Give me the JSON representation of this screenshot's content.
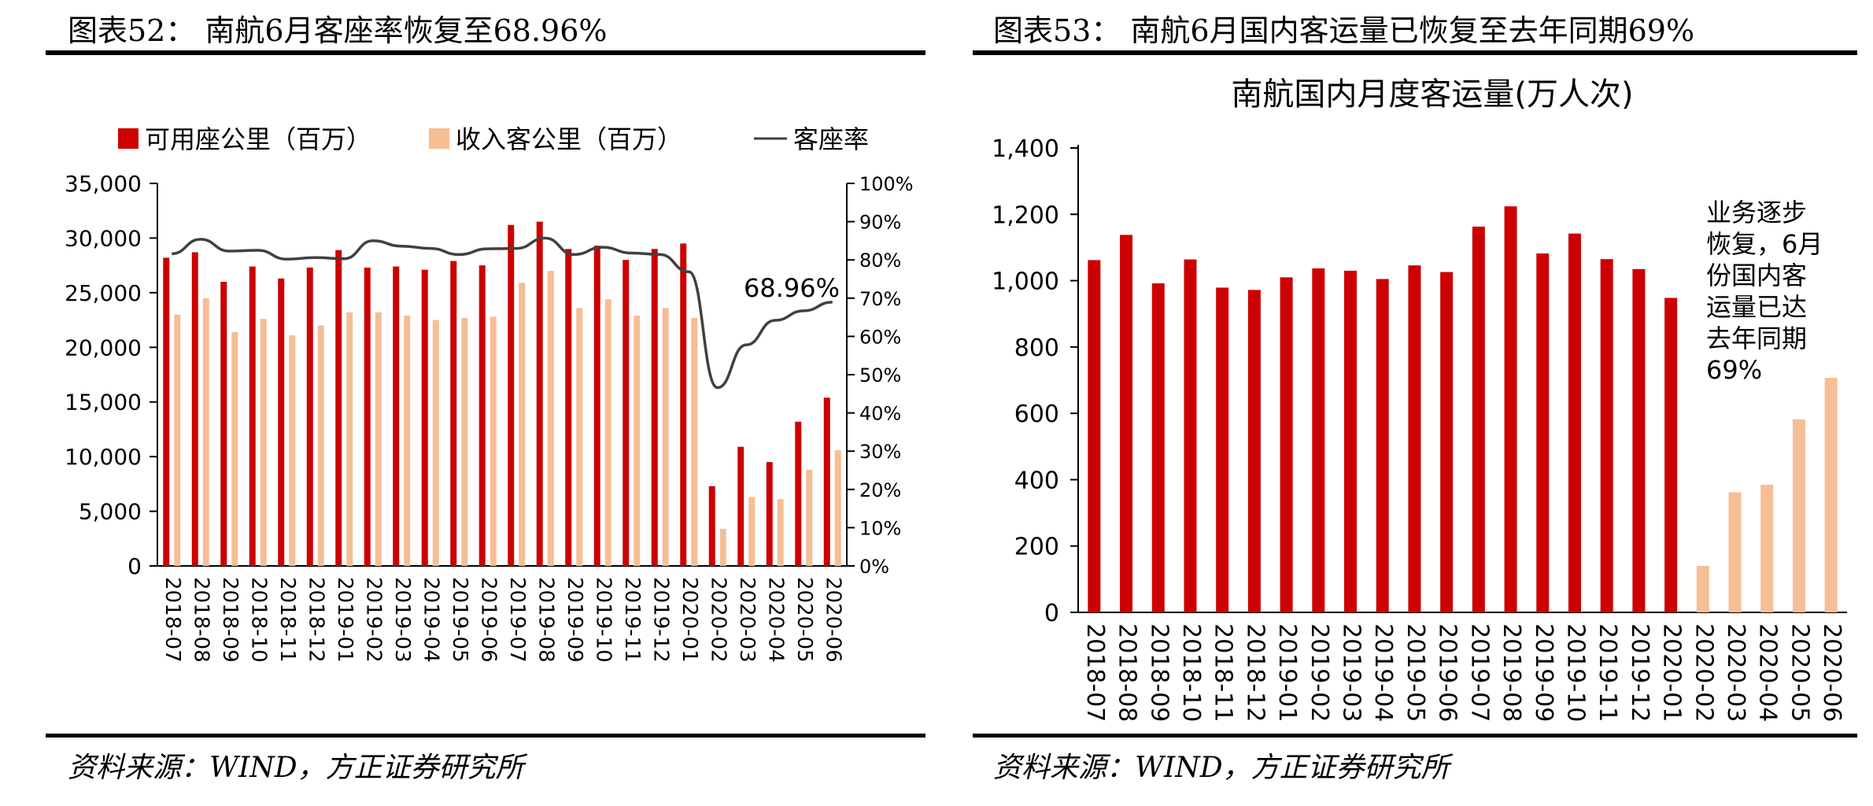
{
  "left_panel": {
    "figure_title": "图表52：  南航6月客座率恢复至68.96%",
    "source": "资料来源：WIND，方正证券研究所"
  },
  "right_panel": {
    "figure_title": "图表53：  南航6月国内客运量已恢复至去年同期69%",
    "source": "资料来源：WIND，方正证券研究所"
  },
  "colors": {
    "red": "#CC0000",
    "peach": "#F5BE95",
    "line": "#404040"
  },
  "chart_data": [
    {
      "type": "bar",
      "title": "",
      "categories": [
        "2018-07",
        "2018-08",
        "2018-09",
        "2018-10",
        "2018-11",
        "2018-12",
        "2019-01",
        "2019-02",
        "2019-03",
        "2019-04",
        "2019-05",
        "2019-06",
        "2019-07",
        "2019-08",
        "2019-09",
        "2019-10",
        "2019-11",
        "2019-12",
        "2020-01",
        "2020-02",
        "2020-03",
        "2020-04",
        "2020-05",
        "2020-06"
      ],
      "series": [
        {
          "name": "可用座公里（百万）",
          "kind": "bar",
          "axis": "left",
          "values": [
            28200,
            28700,
            26000,
            27400,
            26300,
            27300,
            28900,
            27300,
            27400,
            27100,
            27900,
            27500,
            31200,
            31500,
            29000,
            29300,
            28000,
            29000,
            29500,
            7300,
            10900,
            9500,
            13200,
            15400
          ]
        },
        {
          "name": "收入客公里（百万）",
          "kind": "bar",
          "axis": "left",
          "values": [
            23000,
            24500,
            21400,
            22600,
            21100,
            22000,
            23200,
            23200,
            22900,
            22500,
            22700,
            22800,
            25900,
            27000,
            23600,
            24400,
            22900,
            23600,
            22700,
            3400,
            6300,
            6100,
            8800,
            10600
          ]
        },
        {
          "name": "客座率",
          "kind": "line",
          "axis": "right",
          "values": [
            81.6,
            85.4,
            82.3,
            82.5,
            80.2,
            80.6,
            80.3,
            85.0,
            83.6,
            83.0,
            81.4,
            82.9,
            83.0,
            85.7,
            81.4,
            83.3,
            81.8,
            81.4,
            76.9,
            46.6,
            57.8,
            64.2,
            66.7,
            68.96
          ]
        }
      ],
      "ylim": [
        0,
        35000
      ],
      "yticks": [
        "0",
        "5,000",
        "10,000",
        "15,000",
        "20,000",
        "25,000",
        "30,000",
        "35,000"
      ],
      "y2lim": [
        0,
        100
      ],
      "y2ticks": [
        "0%",
        "10%",
        "20%",
        "30%",
        "40%",
        "50%",
        "60%",
        "70%",
        "80%",
        "90%",
        "100%"
      ],
      "annotation": "68.96%",
      "legend_position": "top"
    },
    {
      "type": "bar",
      "title": "南航国内月度客运量(万人次)",
      "categories": [
        "2018-07",
        "2018-08",
        "2018-09",
        "2018-10",
        "2018-11",
        "2018-12",
        "2019-01",
        "2019-02",
        "2019-03",
        "2019-04",
        "2019-05",
        "2019-06",
        "2019-07",
        "2019-08",
        "2019-09",
        "2019-10",
        "2019-11",
        "2019-12",
        "2020-01",
        "2020-02",
        "2020-03",
        "2020-04",
        "2020-05",
        "2020-06"
      ],
      "values": [
        1062,
        1138,
        992,
        1064,
        979,
        972,
        1010,
        1037,
        1030,
        1005,
        1046,
        1026,
        1163,
        1224,
        1082,
        1142,
        1065,
        1035,
        948,
        140,
        362,
        385,
        582,
        707
      ],
      "bar_colors": [
        "red",
        "red",
        "red",
        "red",
        "red",
        "red",
        "red",
        "red",
        "red",
        "red",
        "red",
        "red",
        "red",
        "red",
        "red",
        "red",
        "red",
        "red",
        "red",
        "peach",
        "peach",
        "peach",
        "peach",
        "peach"
      ],
      "ylim": [
        0,
        1400
      ],
      "yticks": [
        "0",
        "200",
        "400",
        "600",
        "800",
        "1,000",
        "1,200",
        "1,400"
      ],
      "annotation_lines": [
        "业务逐步",
        "恢复，6月",
        "份国内客",
        "运量已达",
        "去年同期",
        "69%"
      ]
    }
  ]
}
